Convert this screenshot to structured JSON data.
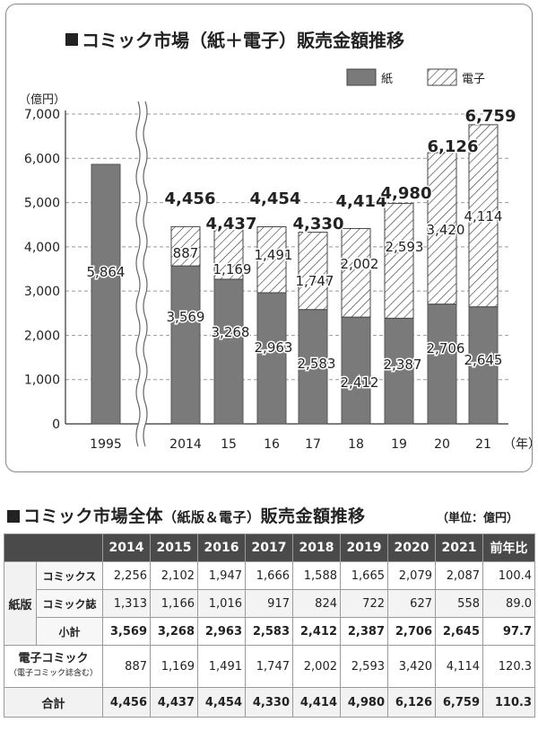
{
  "chart_data": {
    "type": "bar",
    "title": "コミック市場（紙＋電子）販売金額推移",
    "ylabel": "（億円）",
    "xunit": "（年）",
    "ylim": [
      0,
      7000
    ],
    "yticks": [
      "0",
      "1,000",
      "2,000",
      "3,000",
      "4,000",
      "5,000",
      "6,000",
      "7,000"
    ],
    "categories": [
      "1995",
      "2014",
      "15",
      "16",
      "17",
      "18",
      "19",
      "20",
      "21"
    ],
    "series": [
      {
        "name": "紙",
        "values": [
          5864,
          3569,
          3268,
          2963,
          2583,
          2412,
          2387,
          2706,
          2645
        ],
        "labels": [
          "5,864",
          "3,569",
          "3,268",
          "2,963",
          "2,583",
          "2,412",
          "2,387",
          "2,706",
          "2,645"
        ]
      },
      {
        "name": "電子",
        "values": [
          null,
          887,
          1169,
          1491,
          1747,
          2002,
          2593,
          3420,
          4114
        ],
        "labels": [
          "",
          "887",
          "1,169",
          "1,491",
          "1,747",
          "2,002",
          "2,593",
          "3,420",
          "4,114"
        ]
      }
    ],
    "totals": [
      "",
      "4,456",
      "4,437",
      "4,454",
      "4,330",
      "4,414",
      "4,980",
      "6,126",
      "6,759"
    ],
    "grid": true,
    "legend": "top-right",
    "colors": {
      "paper": "#7a7a7a",
      "digital_hatch": "#333333"
    }
  },
  "table": {
    "title_main": "コミック市場全体",
    "title_paren": "（紙版＆電子）",
    "title_tail": "販売金額推移",
    "unit": "（単位：億円）",
    "headers": [
      "2014",
      "2015",
      "2016",
      "2017",
      "2018",
      "2019",
      "2020",
      "2021",
      "前年比"
    ],
    "paper_group": "紙版",
    "rows": [
      {
        "label": "コミックス",
        "values": [
          "2,256",
          "2,102",
          "1,947",
          "1,666",
          "1,588",
          "1,665",
          "2,079",
          "2,087",
          "100.4"
        ]
      },
      {
        "label": "コミック誌",
        "values": [
          "1,313",
          "1,166",
          "1,016",
          "917",
          "824",
          "722",
          "627",
          "558",
          "89.0"
        ]
      }
    ],
    "subtotal": {
      "label": "小計",
      "values": [
        "3,569",
        "3,268",
        "2,963",
        "2,583",
        "2,412",
        "2,387",
        "2,706",
        "2,645",
        "97.7"
      ]
    },
    "digital": {
      "label": "電子コミック",
      "note": "（電子コミック誌含む）",
      "values": [
        "887",
        "1,169",
        "1,491",
        "1,747",
        "2,002",
        "2,593",
        "3,420",
        "4,114",
        "120.3"
      ]
    },
    "total": {
      "label": "合計",
      "values": [
        "4,456",
        "4,437",
        "4,454",
        "4,330",
        "4,414",
        "4,980",
        "6,126",
        "6,759",
        "110.3"
      ]
    }
  }
}
